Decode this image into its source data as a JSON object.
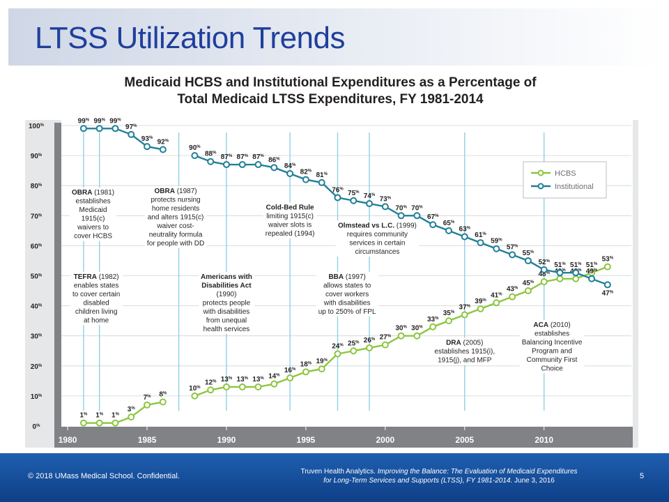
{
  "slide": {
    "title": "LTSS Utilization Trends",
    "page_number": "5"
  },
  "footer": {
    "copyright": "© 2018 UMass Medical School. Confidential.",
    "citation_author": "Truven Health Analytics.",
    "citation_title_1": "Improving the Balance: The Evaluation of Medicaid Expenditures",
    "citation_title_2": "for Long-Term Services and Supports (LTSS), FY 1981-2014.",
    "citation_date": "June 3, 2016"
  },
  "chart_data": {
    "type": "line",
    "title": [
      "Medicaid HCBS and Institutional Expenditures as a Percentage of",
      "Total Medicaid LTSS Expenditures, FY 1981-2014"
    ],
    "xlabel": "",
    "ylabel": "",
    "xlim": [
      1979.6,
      2015.5
    ],
    "ylim": [
      0,
      100
    ],
    "x_ticks": [
      "1980",
      "1985",
      "1990",
      "1995",
      "2000",
      "2005",
      "2010"
    ],
    "y_ticks": [
      "0%",
      "10%",
      "20%",
      "30%",
      "40%",
      "50%",
      "60%",
      "70%",
      "80%",
      "90%",
      "100%"
    ],
    "legend": {
      "position": "top-right"
    },
    "series": [
      {
        "name": "HCBS",
        "color": "#8cc63f",
        "segments": [
          {
            "x": [
              1981,
              1982,
              1983,
              1984,
              1985,
              1986
            ],
            "y": [
              1,
              1,
              1,
              3,
              7,
              8
            ],
            "labels": [
              "1%",
              "1%",
              "1%",
              "3%",
              "7%",
              "8%"
            ]
          },
          {
            "x": [
              1988,
              1989,
              1990,
              1991,
              1992,
              1993,
              1994,
              1995,
              1996,
              1997,
              1998,
              1999,
              2000,
              2001,
              2002,
              2003,
              2004,
              2005,
              2006,
              2007,
              2008,
              2009,
              2010,
              2011,
              2012,
              2013,
              2014
            ],
            "y": [
              10,
              12,
              13,
              13,
              13,
              14,
              16,
              18,
              19,
              24,
              25,
              26,
              27,
              30,
              30,
              33,
              35,
              37,
              39,
              41,
              43,
              45,
              48,
              49,
              49,
              51,
              53
            ],
            "labels": [
              "10%",
              "12%",
              "13%",
              "13%",
              "13%",
              "14%",
              "16%",
              "18%",
              "19%",
              "24%",
              "25%",
              "26%",
              "27%",
              "30%",
              "30%",
              "33%",
              "35%",
              "37%",
              "39%",
              "41%",
              "43%",
              "45%",
              "48%",
              "49%",
              "49%",
              "51%",
              "53%"
            ]
          }
        ]
      },
      {
        "name": "Institutional",
        "color": "#1f7f98",
        "segments": [
          {
            "x": [
              1981,
              1982,
              1983,
              1984,
              1985,
              1986
            ],
            "y": [
              99,
              99,
              99,
              97,
              93,
              92
            ],
            "labels": [
              "99%",
              "99%",
              "99%",
              "97%",
              "93%",
              "92%"
            ]
          },
          {
            "x": [
              1988,
              1989,
              1990,
              1991,
              1992,
              1993,
              1994,
              1995,
              1996,
              1997,
              1998,
              1999,
              2000,
              2001,
              2002,
              2003,
              2004,
              2005,
              2006,
              2007,
              2008,
              2009,
              2010,
              2011,
              2012,
              2013,
              2014
            ],
            "y": [
              90,
              88,
              87,
              87,
              87,
              86,
              84,
              82,
              81,
              76,
              75,
              74,
              73,
              70,
              70,
              67,
              65,
              63,
              61,
              59,
              57,
              55,
              52,
              51,
              51,
              49,
              47
            ],
            "labels": [
              "90%",
              "88%",
              "87%",
              "87%",
              "87%",
              "86%",
              "84%",
              "82%",
              "81%",
              "76%",
              "75%",
              "74%",
              "73%",
              "70%",
              "70%",
              "67%",
              "65%",
              "63%",
              "61%",
              "59%",
              "57%",
              "55%",
              "52%",
              "51%",
              "51%",
              "49%",
              "47%"
            ]
          }
        ]
      }
    ],
    "event_lines": [
      1981,
      1982,
      1987,
      1990,
      1994,
      1997,
      1999,
      2005,
      2010
    ],
    "annotations": [
      {
        "x": 1981.6,
        "y": 77,
        "head": "OBRA",
        "head_rest": " (1981)",
        "lines": [
          "establishes",
          "Medicaid",
          "1915(c)",
          "waivers to",
          "cover HCBS"
        ]
      },
      {
        "x": 1981.8,
        "y": 49,
        "head": "TEFRA",
        "head_rest": " (1982)",
        "lines": [
          "enables states",
          "to cover certain",
          "disabled",
          "children living",
          "at home"
        ]
      },
      {
        "x": 1986.8,
        "y": 77.5,
        "head": "OBRA",
        "head_rest": " (1987)",
        "lines": [
          "protects nursing",
          "home residents",
          "and alters 1915(c)",
          "waiver cost-",
          "neutrality formula",
          "for people with DD"
        ]
      },
      {
        "x": 1990,
        "y": 49,
        "head": "Americans with",
        "head2": "Disabilities Act",
        "lines": [
          "(1990)",
          "protects people",
          "with disabilities",
          "from unequal",
          "health services"
        ]
      },
      {
        "x": 1994,
        "y": 72,
        "head": "Cold-Bed Rule",
        "lines": [
          "limiting 1915(c)",
          "waiver slots is",
          "repealed (1994)"
        ]
      },
      {
        "x": 1999.5,
        "y": 66,
        "head": "Olmstead vs L.C.",
        "head_rest": " (1999)",
        "lines": [
          "requires community",
          "services in certain",
          "circumstances"
        ]
      },
      {
        "x": 1997.6,
        "y": 49,
        "head": "BBA",
        "head_rest": " (1997)",
        "lines": [
          "allows states to",
          "cover workers",
          "with disabilities",
          "up to 250% of FPL"
        ]
      },
      {
        "x": 2005,
        "y": 27,
        "head": "DRA",
        "head_rest": " (2005)",
        "lines": [
          "establishes 1915(i),",
          "1915(j), and MFP"
        ]
      },
      {
        "x": 2010.5,
        "y": 33,
        "head": "ACA",
        "head_rest": " (2010)",
        "lines": [
          "establishes",
          "Balancing Incentive",
          "Program and",
          "Community First",
          "Choice"
        ]
      }
    ]
  }
}
